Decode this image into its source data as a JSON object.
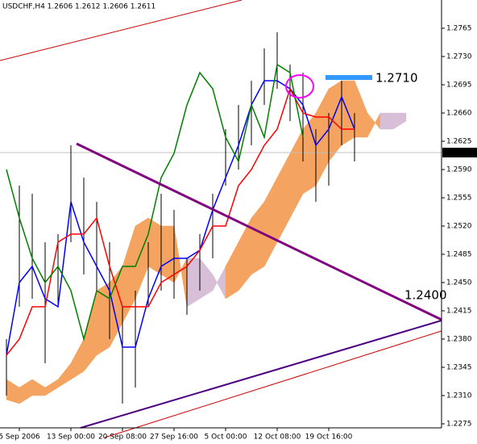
{
  "chart_data": {
    "type": "ichimoku",
    "title": "USDCHF,H4  1.2606 1.2612 1.2606 1.2611",
    "categories": [
      null,
      "5 Sep 2006",
      null,
      null,
      null,
      "13 Sep 00:00",
      null,
      null,
      null,
      "20 Sep 08:00",
      null,
      null,
      null,
      "27 Sep 16:00",
      null,
      null,
      null,
      "5 Oct 00:00",
      null,
      null,
      null,
      "12 Oct 08:00",
      null,
      null,
      null,
      "19 Oct 16:00",
      null,
      null,
      null,
      null,
      null,
      null,
      null,
      null
    ],
    "ylim": [
      1.227,
      1.28
    ],
    "yticks": [
      1.2765,
      {
        "value": 1.273,
        "label": "1.2730"
      },
      1.2695,
      {
        "value": 1.266,
        "label": "1.2660"
      },
      1.2625,
      {
        "value": 1.259,
        "label": "1.2590"
      },
      1.2555,
      {
        "value": 1.252,
        "label": "1.2520"
      },
      1.2485,
      {
        "value": 1.245,
        "label": "1.2450"
      },
      1.2415,
      {
        "value": 1.238,
        "label": "1.2380"
      },
      1.2345,
      {
        "value": 1.231,
        "label": "1.2310"
      },
      1.2275
    ],
    "last_price": 1.2611,
    "bars": {
      "color": "#000000",
      "high": [
        1.238,
        1.257,
        1.256,
        1.25,
        1.251,
        1.262,
        1.258,
        1.255,
        1.25,
        1.242,
        1.244,
        1.25,
        1.256,
        1.254,
        1.248,
        1.251,
        1.256,
        1.264,
        1.267,
        1.27,
        1.274,
        1.276,
        1.272,
        1.271,
        1.264,
        1.266,
        1.27,
        1.266,
        null,
        null,
        null,
        null,
        null,
        null
      ],
      "low": [
        1.231,
        1.242,
        1.243,
        1.235,
        1.242,
        1.25,
        1.246,
        1.244,
        1.238,
        1.23,
        1.232,
        1.242,
        1.244,
        1.243,
        1.241,
        1.244,
        1.248,
        1.257,
        1.259,
        1.262,
        1.267,
        1.269,
        1.265,
        1.26,
        1.255,
        1.257,
        1.262,
        1.26,
        null,
        null,
        null,
        null,
        null,
        null
      ]
    },
    "series": [
      {
        "color": "#0000ff",
        "values": [
          1.236,
          1.245,
          1.247,
          1.243,
          1.242,
          1.255,
          1.25,
          1.247,
          1.244,
          1.237,
          1.237,
          1.243,
          1.247,
          1.248,
          1.248,
          1.249,
          1.254,
          1.258,
          1.262,
          1.267,
          1.27,
          1.27,
          1.269,
          1.267,
          1.262,
          1.264,
          1.268,
          1.264,
          null,
          null,
          null,
          null,
          null,
          null
        ]
      },
      {
        "color": "#ff0000",
        "values": [
          1.236,
          1.238,
          1.242,
          1.242,
          1.25,
          1.251,
          1.251,
          1.253,
          1.247,
          1.242,
          1.242,
          1.242,
          1.245,
          1.246,
          1.247,
          1.249,
          1.252,
          1.252,
          1.257,
          1.259,
          1.262,
          1.264,
          1.269,
          1.266,
          1.2655,
          1.2655,
          1.264,
          1.264,
          null,
          null,
          null,
          null,
          null,
          null
        ]
      },
      {
        "color": "#008000",
        "values": [
          1.259,
          1.253,
          1.248,
          1.245,
          1.247,
          1.244,
          1.238,
          1.244,
          1.243,
          1.247,
          1.247,
          1.251,
          1.258,
          1.261,
          1.267,
          1.271,
          1.269,
          1.263,
          1.26,
          1.267,
          1.263,
          1.272,
          1.271,
          1.263,
          null,
          null,
          null,
          null,
          null,
          null,
          null,
          null,
          null,
          null
        ]
      }
    ],
    "cloud": {
      "colors": [
        "#f4a460",
        "#d8bfd8"
      ],
      "span_a": [
        1.233,
        1.232,
        1.233,
        1.232,
        1.233,
        1.235,
        1.238,
        1.244,
        1.245,
        1.247,
        1.252,
        1.253,
        1.252,
        1.252,
        1.242,
        1.243,
        1.244,
        1.247,
        1.25,
        1.253,
        1.255,
        1.258,
        1.261,
        1.264,
        1.266,
        1.269,
        1.27,
        1.27,
        1.266,
        1.264,
        1.264,
        1.265,
        null,
        null
      ],
      "span_b": [
        1.2305,
        1.23,
        1.231,
        1.231,
        1.232,
        1.233,
        1.234,
        1.236,
        1.237,
        1.24,
        1.243,
        1.247,
        1.246,
        1.245,
        1.248,
        1.248,
        1.246,
        1.243,
        1.244,
        1.246,
        1.247,
        1.25,
        1.253,
        1.256,
        1.257,
        1.26,
        1.262,
        1.263,
        1.263,
        1.266,
        1.266,
        1.266,
        null,
        null
      ]
    },
    "annotations": [
      {
        "text": "1.2710",
        "color": "#3399ff"
      },
      {
        "text": "1.2400",
        "color": "#800080"
      }
    ]
  }
}
